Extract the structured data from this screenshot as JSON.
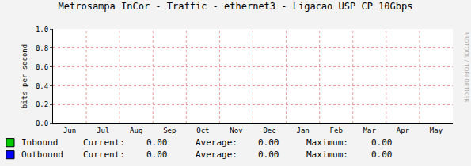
{
  "chart_data": {
    "type": "line",
    "title": "Metrosampa InCor - Traffic - ethernet3 - Ligacao USP CP 10Gbps",
    "y_label": "bits per second",
    "categories": [
      "Jun",
      "Jul",
      "Aug",
      "Sep",
      "Oct",
      "Nov",
      "Dec",
      "Jan",
      "Feb",
      "Mar",
      "Apr",
      "May"
    ],
    "series": [
      {
        "name": "Inbound",
        "color": "#00cc00",
        "type": "area",
        "values": [
          0,
          0,
          0,
          0,
          0,
          0,
          0,
          0,
          0,
          0,
          0,
          0
        ],
        "stats": [
          0,
          0,
          0
        ],
        "stats_labels": [
          "0.00",
          "0.00",
          "0.00"
        ]
      },
      {
        "name": "Outbound",
        "color": "#0000ff",
        "type": "line",
        "values": [
          0,
          0,
          0,
          0,
          0,
          0,
          0,
          0,
          0,
          0,
          0,
          0
        ],
        "stats": [
          0,
          0,
          0
        ],
        "stats_labels": [
          "0.00",
          "0.00",
          "0.00"
        ]
      }
    ],
    "stats_names": [
      "Current:",
      "Average:",
      "Maximum:"
    ],
    "ylim": [
      0,
      1
    ],
    "yticks": [
      {
        "value": 0,
        "label": "0.0"
      },
      0.2,
      0.4,
      0.6,
      0.8,
      {
        "value": 1,
        "label": "1.0"
      }
    ],
    "grid": true,
    "legend": "bottom",
    "annotations": [
      "RRDTOOL / TOBI OETIKER"
    ]
  }
}
